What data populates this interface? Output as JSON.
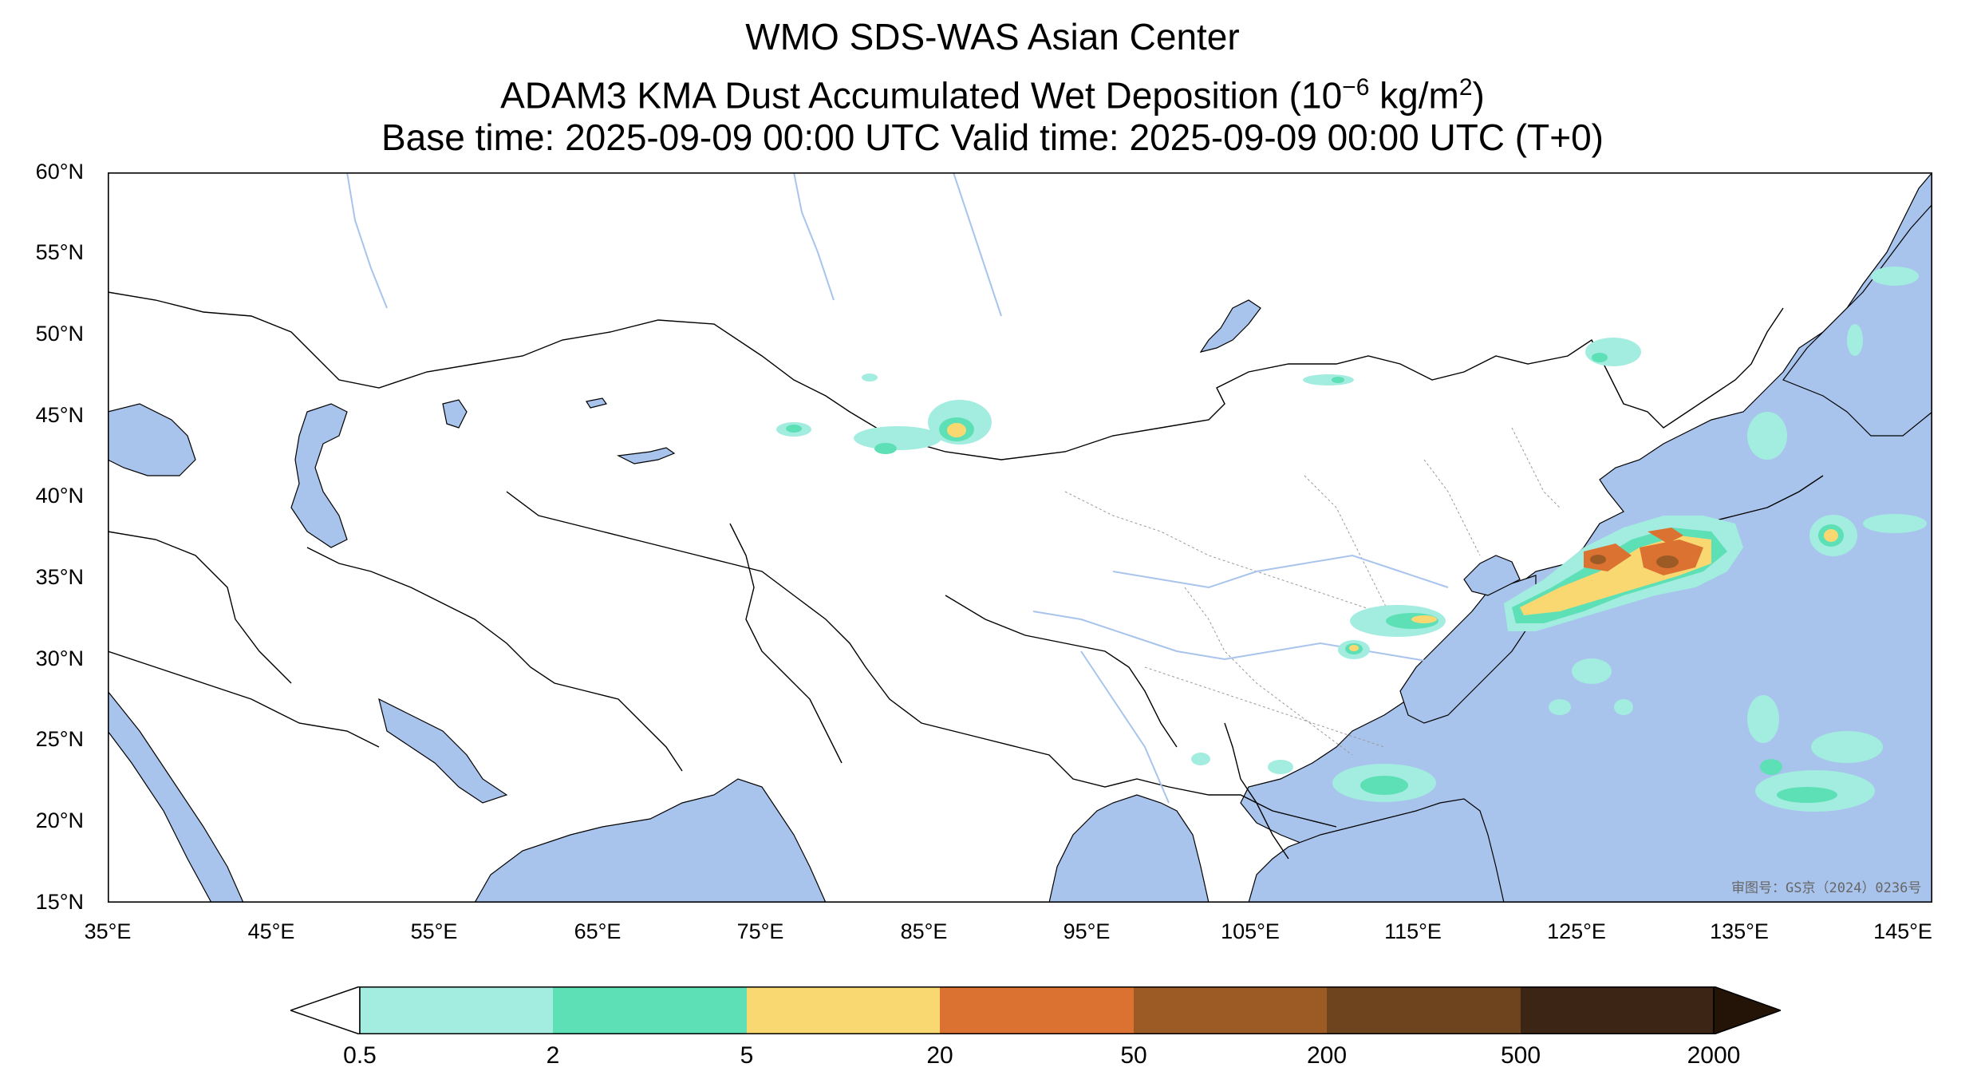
{
  "title": {
    "line1": "WMO SDS-WAS Asian Center",
    "line2": "ADAM3 KMA Dust Accumulated Wet Deposition (10",
    "line2_exp": "−6",
    "line2_unit": " kg/m",
    "line2_unit_exp": "2",
    "line2_close": ")",
    "line3": "Base time: 2025-09-09 00:00 UTC Valid time: 2025-09-09 00:00 UTC (T+0)"
  },
  "axes": {
    "lon_range": [
      35,
      149
    ],
    "lat_range": [
      15,
      60
    ],
    "y_ticks": [
      "60°N",
      "55°N",
      "50°N",
      "45°N",
      "40°N",
      "35°N",
      "30°N",
      "25°N",
      "20°N",
      "15°N"
    ],
    "x_ticks": [
      "35°E",
      "45°E",
      "55°E",
      "65°E",
      "75°E",
      "85°E",
      "95°E",
      "105°E",
      "115°E",
      "125°E",
      "135°E",
      "145°E"
    ]
  },
  "colorbar": {
    "labels": [
      "0.5",
      "2",
      "5",
      "20",
      "50",
      "200",
      "500",
      "2000"
    ],
    "colors": [
      "#a3ece0",
      "#5de0b6",
      "#f9d872",
      "#dc7232",
      "#9c5a25",
      "#6e441e",
      "#3c2514",
      "#241408"
    ]
  },
  "colors": {
    "sea": "#a9c4ec",
    "land": "#ffffff",
    "border": "#000000",
    "river": "#a9c4ec",
    "province": "#999999"
  },
  "watermark": "审图号：GS京（2024）0236号",
  "deposition_areas": [
    {
      "lon": 86.5,
      "lat": 44,
      "level": "5-20"
    },
    {
      "lon": 70,
      "lat": 44,
      "level": "0.5-2"
    },
    {
      "lon": 111,
      "lat": 47,
      "level": "0.5-2"
    },
    {
      "lon": 129,
      "lat": 48,
      "level": "0.5-2"
    },
    {
      "lon": 123,
      "lat": 33.5,
      "level": "5-20"
    },
    {
      "lon": 126,
      "lat": 35,
      "level": "20-50"
    },
    {
      "lon": 130,
      "lat": 35.5,
      "level": "20-50"
    },
    {
      "lon": 116,
      "lat": 31.5,
      "level": "5-20"
    },
    {
      "lon": 112,
      "lat": 30.5,
      "level": "5-20"
    },
    {
      "lon": 141,
      "lat": 37,
      "level": "5-20"
    },
    {
      "lon": 115,
      "lat": 21.5,
      "level": "0.5-2"
    },
    {
      "lon": 140.5,
      "lat": 21,
      "level": "0.5-2"
    },
    {
      "lon": 138,
      "lat": 24,
      "level": "0.5-2"
    },
    {
      "lon": 137,
      "lat": 42,
      "level": "0.5-2"
    }
  ]
}
